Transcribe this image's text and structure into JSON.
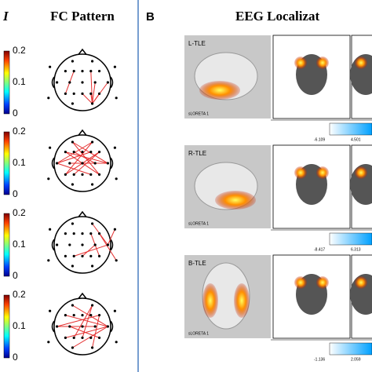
{
  "left_panel": {
    "label": "I",
    "title": "FC Pattern",
    "colorbars": [
      {
        "ticks": [
          0.2,
          0.1,
          0
        ]
      },
      {
        "ticks": [
          0.2,
          0.1,
          0
        ]
      },
      {
        "ticks": [
          0.2,
          0.1,
          0
        ]
      },
      {
        "ticks": [
          0.2,
          0.1,
          0
        ]
      }
    ]
  },
  "right_panel": {
    "label": "B",
    "title": "EEG Localizat",
    "rows": [
      {
        "name": "L-TLE",
        "software": "sLORETA 1",
        "scale_min": "-6.109",
        "scale_max": "4.501"
      },
      {
        "name": "R-TLE",
        "software": "sLORETA 1",
        "scale_min": "-8.417",
        "scale_max": "6.313"
      },
      {
        "name": "B-TLE",
        "software": "sLORETA 1",
        "scale_min": "-1.136",
        "scale_max": "2.059"
      }
    ]
  }
}
